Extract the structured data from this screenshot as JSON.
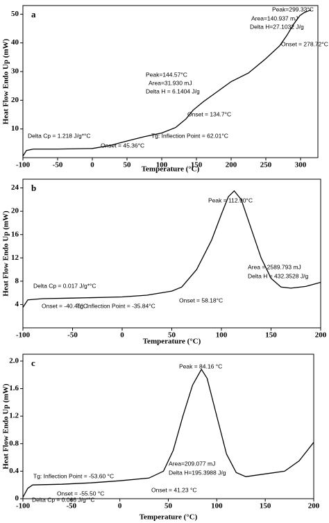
{
  "chart_data": [
    {
      "type": "line",
      "label": "a",
      "xlabel": "Temperature (°C)",
      "ylabel": "Heat Flow Endo Up (mW)",
      "xlim": [
        -100,
        325
      ],
      "ylim": [
        0,
        53
      ],
      "xticks": [
        -100,
        -50,
        0,
        50,
        100,
        150,
        200,
        250,
        300
      ],
      "yticks": [
        10,
        20,
        30,
        40,
        50
      ],
      "color": "#000000",
      "x": [
        -100,
        -95,
        -85,
        -50,
        0,
        25,
        50,
        75,
        100,
        120,
        135,
        145,
        160,
        180,
        200,
        225,
        250,
        270,
        280,
        290,
        299,
        305,
        315
      ],
      "values": [
        0.5,
        2.5,
        3,
        3,
        3.2,
        4.2,
        5.8,
        7.3,
        8.6,
        10.5,
        13.5,
        16.5,
        19.5,
        23,
        26.5,
        29.5,
        34.5,
        39,
        42.5,
        46.5,
        49.5,
        50.5,
        51.5
      ],
      "annotations": [
        "Peak=299.33°C",
        "Area=140.937 mJ",
        "Delta H=27.1032 J/g",
        "Onset = 278.72°C",
        "Peak=144.57°C",
        "Area=31.930 mJ",
        "Delta H = 6.1404 J/g",
        "Onset = 134.7°C",
        "Delta Cp = 1.218 J/g*°C",
        "Tg: Inflection Point = 62.01°C",
        "Onset = 45.36°C"
      ]
    },
    {
      "type": "line",
      "label": "b",
      "xlabel": "Temperature (°C)",
      "ylabel": "Heat Flow Endo Up (mW)",
      "xlim": [
        -100,
        200
      ],
      "ylim": [
        0,
        25.5
      ],
      "xticks": [
        -100,
        -50,
        0,
        50,
        100,
        150,
        200
      ],
      "yticks": [
        4,
        8,
        12,
        16,
        20,
        24
      ],
      "color": "#000000",
      "x": [
        -100,
        -95,
        -80,
        -50,
        0,
        25,
        50,
        60,
        75,
        90,
        100,
        107,
        112.9,
        120,
        130,
        140,
        150,
        160,
        170,
        185,
        200
      ],
      "values": [
        3.5,
        4.8,
        5,
        5.1,
        5.3,
        5.6,
        6.3,
        7,
        10,
        15,
        19.5,
        22.5,
        23.5,
        22,
        17,
        12,
        8.5,
        7,
        6.8,
        7.1,
        7.8
      ],
      "annotations": [
        "Peak = 112.90°C",
        "Area = 2589.793 mJ",
        "Delta H = 432.3528 J/g",
        "Delta Cp = 0.017 J/g*°C",
        "Onset = -40.46°C",
        "Tg: Inflection Point = -35.84°C",
        "Onset = 58.18°C"
      ]
    },
    {
      "type": "line",
      "label": "c",
      "xlabel": "Temperature (°C)",
      "ylabel": "Heat Flow Endo Up (mW)",
      "xlim": [
        -100,
        200
      ],
      "ylim": [
        0,
        2.1
      ],
      "xticks": [
        -100,
        -50,
        0,
        50,
        100,
        150,
        200
      ],
      "yticks": [
        0,
        0.4,
        0.8,
        1.2,
        1.6,
        {
          "value": 2,
          "label": "2.0"
        }
      ],
      "color": "#000000",
      "x": [
        -100,
        -95,
        -90,
        -60,
        -30,
        0,
        30,
        45,
        55,
        65,
        75,
        84.16,
        90,
        100,
        110,
        120,
        130,
        150,
        170,
        185,
        200
      ],
      "values": [
        0.02,
        0.15,
        0.2,
        0.21,
        0.23,
        0.26,
        0.3,
        0.4,
        0.7,
        1.2,
        1.65,
        1.88,
        1.75,
        1.2,
        0.65,
        0.38,
        0.32,
        0.36,
        0.4,
        0.55,
        0.82
      ],
      "annotations": [
        "Peak = 84.16 °C",
        "Area=209.077 mJ",
        "Delta H=195.3988 J/g",
        "Tg: Inflection Point = -53.60 °C",
        "Onset = -55.50 °C",
        "Delta Cp = 0.066 J/g*°C",
        "Onset = 41.23 °C"
      ]
    }
  ]
}
